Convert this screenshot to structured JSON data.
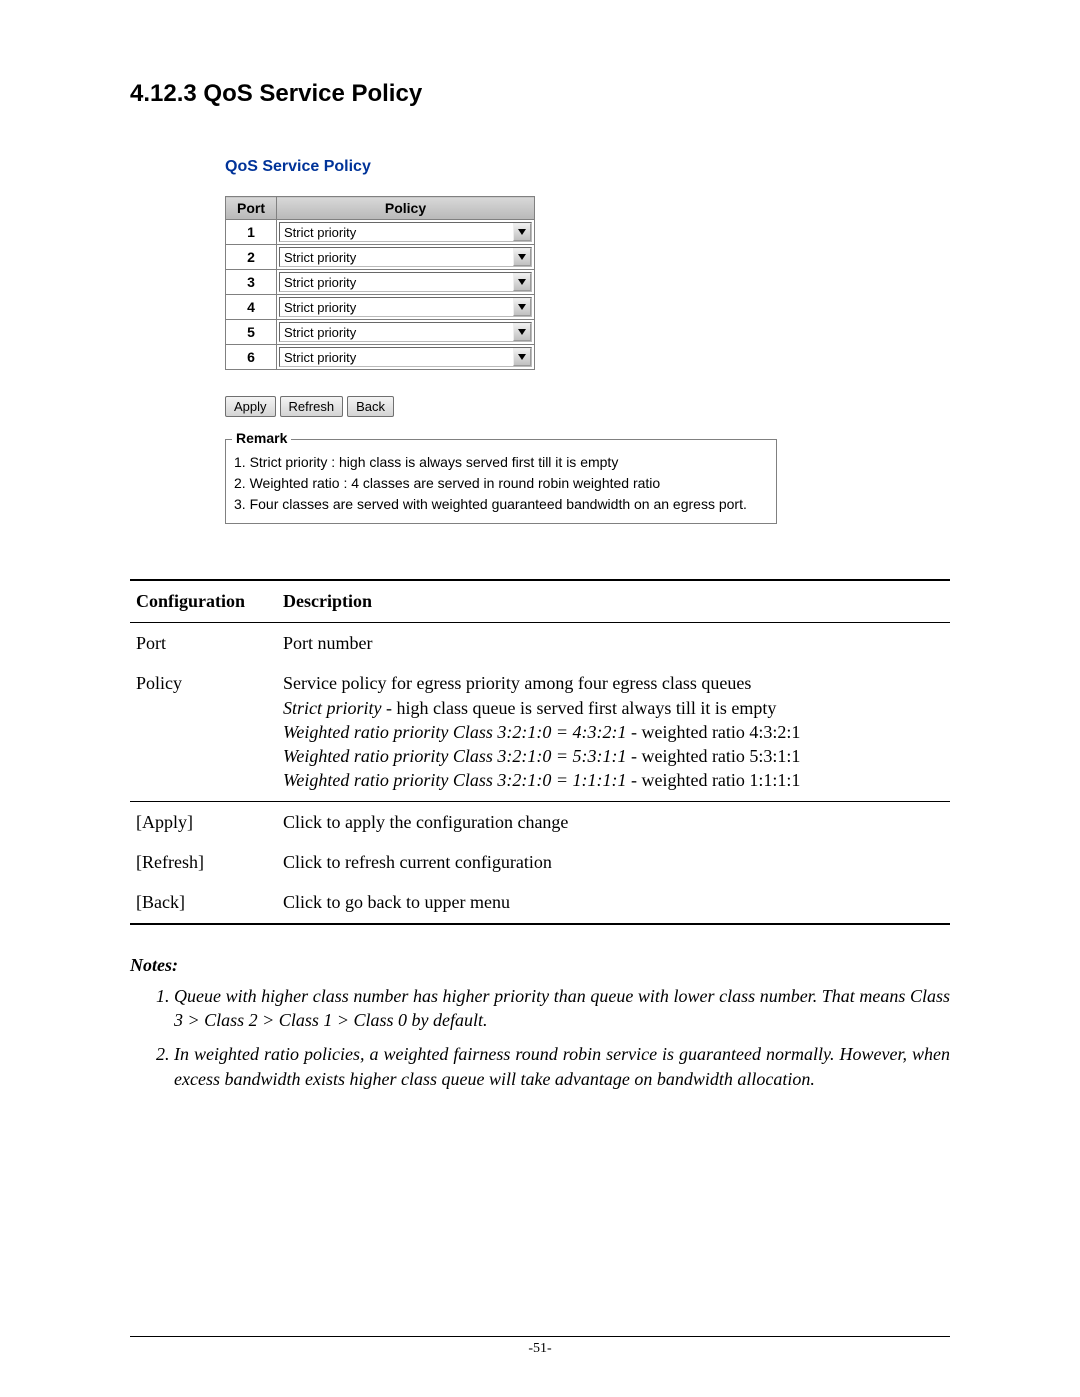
{
  "heading": "4.12.3 QoS Service Policy",
  "gui": {
    "title": "QoS Service Policy",
    "table": {
      "headers": {
        "port": "Port",
        "policy": "Policy"
      },
      "rows": [
        {
          "port": "1",
          "policy": "Strict priority"
        },
        {
          "port": "2",
          "policy": "Strict priority"
        },
        {
          "port": "3",
          "policy": "Strict priority"
        },
        {
          "port": "4",
          "policy": "Strict priority"
        },
        {
          "port": "5",
          "policy": "Strict priority"
        },
        {
          "port": "6",
          "policy": "Strict priority"
        }
      ]
    },
    "buttons": {
      "apply": "Apply",
      "refresh": "Refresh",
      "back": "Back"
    },
    "remark": {
      "label": "Remark",
      "lines": [
        "1. Strict priority : high class is always served first till it is empty",
        "2. Weighted ratio : 4 classes are served in round robin weighted ratio",
        "3. Four classes are served with weighted guaranteed bandwidth on an egress port."
      ]
    }
  },
  "config": {
    "headers": {
      "conf": "Configuration",
      "desc": "Description"
    },
    "rows1": [
      {
        "label": "Port",
        "desc": "Port number"
      }
    ],
    "policy": {
      "label": "Policy",
      "line1": "Service policy for egress priority among four egress class queues",
      "sp_em": "Strict priority",
      "sp_rest": " - high class queue is served first always till it is empty",
      "w1_em": "Weighted ratio priority Class 3:2:1:0 = 4:3:2:1",
      "w1_rest": " - weighted ratio 4:3:2:1",
      "w2_em": "Weighted ratio priority Class 3:2:1:0 = 5:3:1:1",
      "w2_rest": " - weighted ratio 5:3:1:1",
      "w3_em": "Weighted ratio priority Class 3:2:1:0 = 1:1:1:1",
      "w3_rest": " - weighted ratio 1:1:1:1"
    },
    "rows2": [
      {
        "label": "[Apply]",
        "desc": "Click to apply the configuration change"
      },
      {
        "label": "[Refresh]",
        "desc": "Click to refresh current configuration"
      },
      {
        "label": "[Back]",
        "desc": "Click to go back to upper menu"
      }
    ]
  },
  "notes": {
    "heading": "Notes:",
    "items": [
      "Queue with higher class number has higher priority than queue with lower class number. That means Class 3 > Class 2 > Class 1 > Class 0 by default.",
      "In weighted ratio policies, a weighted fairness round robin service is guaranteed normally. However, when excess bandwidth exists higher class queue will take advantage on bandwidth allocation."
    ]
  },
  "footer": {
    "page": "-51-"
  },
  "style": {
    "accent_color": "#003399",
    "header_bg": "#c8c8c8",
    "border_color": "#808080",
    "font_body": "Times New Roman",
    "font_ui": "Arial"
  }
}
